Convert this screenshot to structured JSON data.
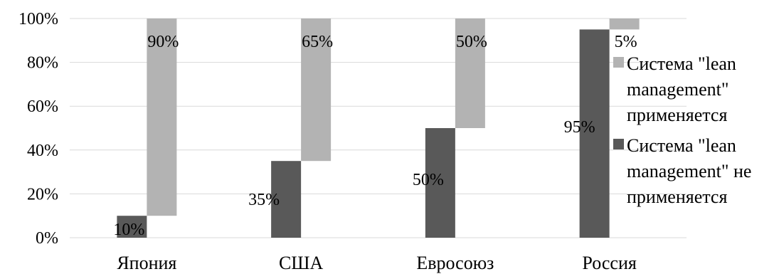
{
  "chart_data": {
    "type": "bar",
    "categories": [
      "Япония",
      "США",
      "Евросоюз",
      "Россия"
    ],
    "series": [
      {
        "name": "Система \"lean management\" не применяется",
        "values": [
          10,
          35,
          50,
          95
        ],
        "labels": [
          "10%",
          "35%",
          "50%",
          "95%"
        ],
        "color": "#595959"
      },
      {
        "name": "Система \"lean management\" применяется",
        "values": [
          90,
          65,
          50,
          5
        ],
        "labels": [
          "90%",
          "65%",
          "50%",
          "5%"
        ],
        "color": "#b3b3b3"
      }
    ],
    "ylim": [
      0,
      100
    ],
    "yticks": [
      0,
      20,
      40,
      60,
      80,
      100
    ],
    "ytick_labels": [
      "0%",
      "20%",
      "40%",
      "60%",
      "80%",
      "100%"
    ],
    "grid": true,
    "legend_position": "right",
    "legend": [
      {
        "series": 1,
        "lines": [
          "Система \"lean",
          "management\"",
          "применяется"
        ]
      },
      {
        "series": 0,
        "lines": [
          "Система \"lean",
          "management\" не",
          "применяется"
        ]
      }
    ]
  }
}
